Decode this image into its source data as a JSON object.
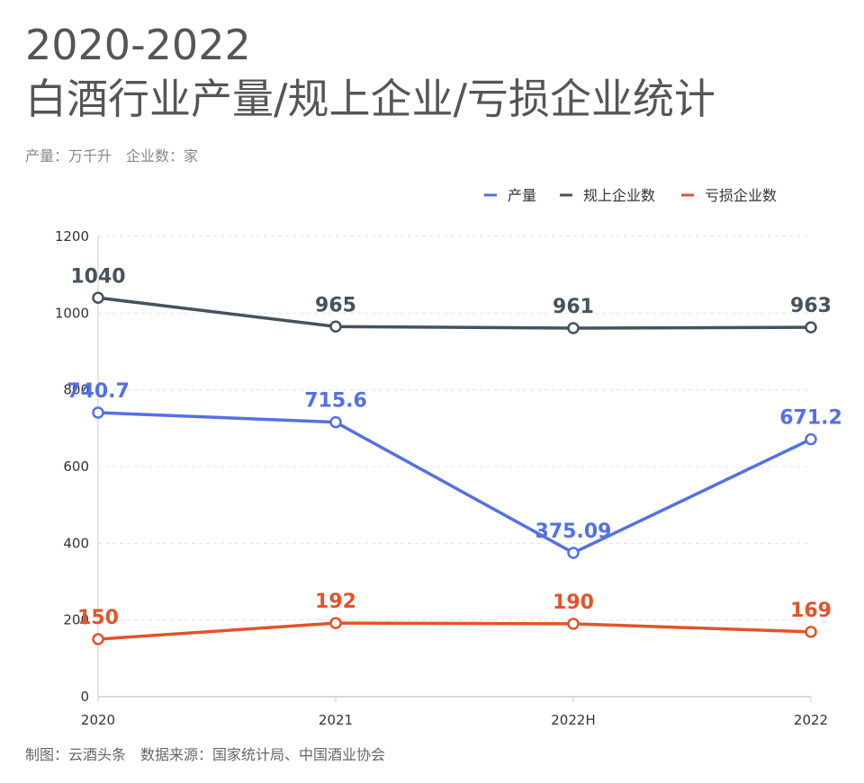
{
  "title_line1": "2020-2022",
  "title_line2": "白酒行业产量/规上企业/亏损企业统计",
  "subtitle": "产量：万千升　企业数：家",
  "footer": "制图：云酒头条　数据来源：国家统计局、中国酒业协会",
  "chart_data": {
    "type": "line",
    "categories": [
      "2020",
      "2021",
      "2022H",
      "2022"
    ],
    "ylim": [
      0,
      1200
    ],
    "yticks": [
      0,
      200,
      400,
      600,
      800,
      1000,
      1200
    ],
    "grid": true,
    "legend_position": "top-right",
    "series": [
      {
        "name": "产量",
        "values": [
          740.7,
          715.6,
          375.09,
          671.2
        ],
        "labels": [
          "740.7",
          "715.6",
          "375.09",
          "671.2"
        ],
        "color": "#5470e6"
      },
      {
        "name": "规上企业数",
        "values": [
          1040,
          965,
          961,
          963
        ],
        "labels": [
          "1040",
          "965",
          "961",
          "963"
        ],
        "color": "#44535d"
      },
      {
        "name": "亏损企业数",
        "values": [
          150,
          192,
          190,
          169
        ],
        "labels": [
          "150",
          "192",
          "190",
          "169"
        ],
        "color": "#e4532a"
      }
    ]
  }
}
